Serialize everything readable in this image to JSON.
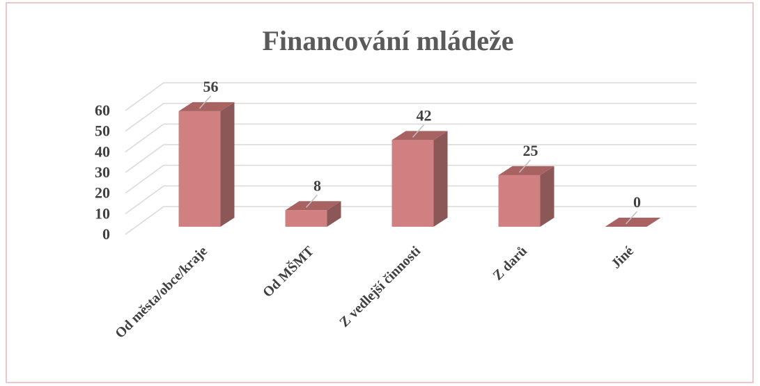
{
  "chart_data": {
    "type": "bar3d",
    "title": "Financování mládeže",
    "categories": [
      "Od města/obce/kraje",
      "Od MŠMT",
      "Z vedlejší činnosti",
      "Z darů",
      "Jiné"
    ],
    "values": [
      56,
      8,
      42,
      25,
      0
    ],
    "color": "#d08080",
    "side_color": "#8b5757",
    "top_color": "#a96262",
    "ylim": [
      0,
      60
    ],
    "yticks": [
      0,
      10,
      20,
      30,
      40,
      50,
      60
    ],
    "grid": true
  }
}
